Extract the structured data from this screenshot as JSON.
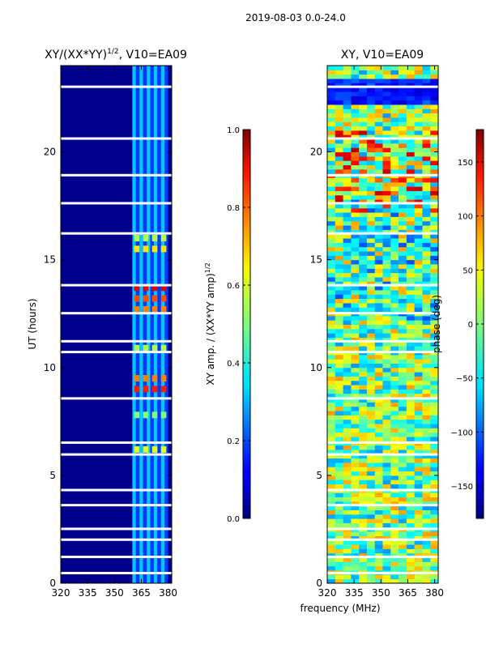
{
  "suptitle": "2019-08-03 0.0-24.0",
  "common_xlabel": "frequency (MHz)",
  "colors": {
    "wf_fill": "#00008b",
    "gap": "#ffffff",
    "axis": "#000000"
  },
  "chart_data": [
    {
      "type": "heatmap",
      "title": "XY/(XX*YY)",
      "title_sup": "1/2",
      "title_suffix": ", V10=EA09",
      "xlabel": "",
      "ylabel": "UT (hours)",
      "xlim": [
        320,
        382
      ],
      "ylim": [
        0,
        24
      ],
      "xticks": [
        320,
        335,
        350,
        365,
        380
      ],
      "yticks": [
        0,
        5,
        10,
        15,
        20
      ],
      "colorbar": {
        "label": "XY amp. / (XX*YY amp)",
        "label_sup": "1/2",
        "range": [
          0.0,
          1.0
        ],
        "ticks": [
          "0.0",
          "0.2",
          "0.4",
          "0.6",
          "0.8",
          "1.0"
        ],
        "tick_values": [
          0.0,
          0.2,
          0.4,
          0.6,
          0.8,
          1.0
        ],
        "colormap": "jet"
      },
      "data_gaps_hours": [
        0.45,
        1.2,
        2.0,
        2.5,
        3.6,
        4.3,
        5.95,
        6.5,
        8.55,
        10.7,
        11.2,
        12.5,
        13.8,
        16.2,
        17.6,
        18.9,
        20.6,
        23.0
      ],
      "high_response_band_mhz": [
        360,
        380
      ]
    },
    {
      "type": "heatmap",
      "title": "XY, V10=EA09",
      "xlabel": "",
      "ylabel": "",
      "xlim": [
        320,
        382
      ],
      "ylim": [
        0,
        24
      ],
      "xticks": [
        320,
        335,
        350,
        365,
        380
      ],
      "yticks": [
        0,
        5,
        10,
        15,
        20
      ],
      "colorbar": {
        "label": "phase (deg)",
        "range": [
          -180,
          180
        ],
        "ticks": [
          "−150",
          "−100",
          "−50",
          "0",
          "50",
          "100",
          "150"
        ],
        "tick_values": [
          -150,
          -100,
          -50,
          0,
          50,
          100,
          150
        ],
        "colormap": "jet"
      },
      "data_gaps_hours": [
        0.45,
        1.2,
        2.0,
        2.5,
        3.6,
        4.3,
        5.95,
        6.5,
        8.55,
        10.7,
        11.2,
        12.5,
        13.8,
        16.2,
        17.6,
        18.9,
        20.6,
        23.0
      ]
    }
  ]
}
